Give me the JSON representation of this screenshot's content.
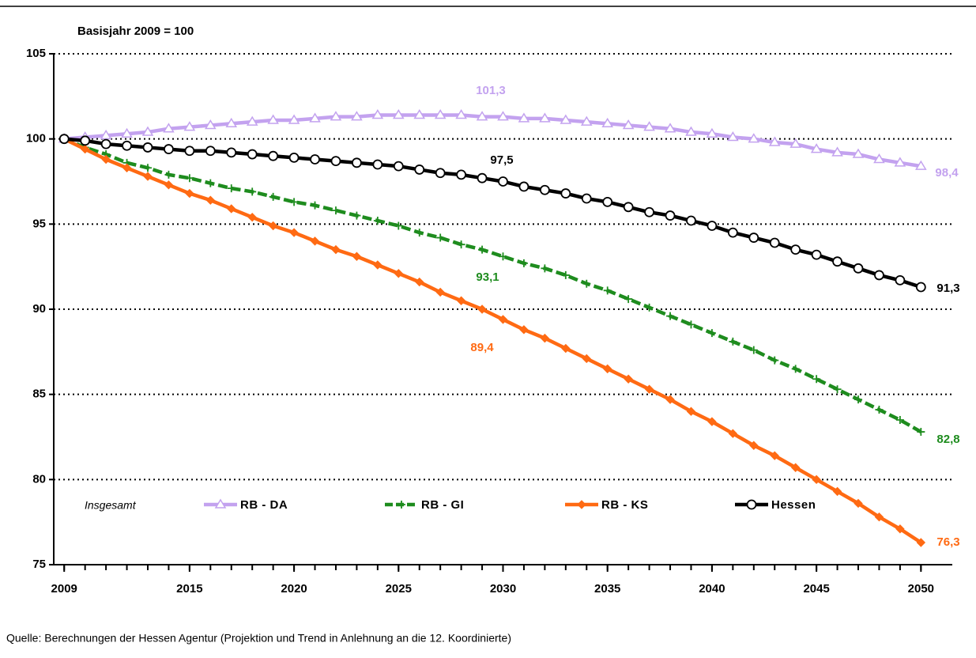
{
  "chart_data": {
    "type": "line",
    "title": "Basisjahr 2009 = 100",
    "legend_title": "Insgesamt",
    "source": "Quelle:  Berechnungen der Hessen Agentur (Projektion und Trend in Anlehnung an die 12. Koordinierte)",
    "x": [
      2009,
      2010,
      2011,
      2012,
      2013,
      2014,
      2015,
      2016,
      2017,
      2018,
      2019,
      2020,
      2021,
      2022,
      2023,
      2024,
      2025,
      2026,
      2027,
      2028,
      2029,
      2030,
      2031,
      2032,
      2033,
      2034,
      2035,
      2036,
      2037,
      2038,
      2039,
      2040,
      2041,
      2042,
      2043,
      2044,
      2045,
      2046,
      2047,
      2048,
      2049,
      2050
    ],
    "xlim": [
      2008.5,
      2051.5
    ],
    "xticks": [
      2009,
      2015,
      2020,
      2025,
      2030,
      2035,
      2040,
      2045,
      2050
    ],
    "ylim": [
      75,
      105
    ],
    "yticks": [
      75,
      80,
      85,
      90,
      95,
      100,
      105
    ],
    "grid": true,
    "legend": "bottom",
    "series": [
      {
        "name": "RB - DA",
        "color": "#c3a2ef",
        "marker": "triangle",
        "values": [
          100.0,
          100.1,
          100.2,
          100.3,
          100.4,
          100.6,
          100.7,
          100.8,
          100.9,
          101.0,
          101.1,
          101.1,
          101.2,
          101.3,
          101.3,
          101.4,
          101.4,
          101.4,
          101.4,
          101.4,
          101.3,
          101.3,
          101.2,
          101.2,
          101.1,
          101.0,
          100.9,
          100.8,
          100.7,
          100.6,
          100.4,
          100.3,
          100.1,
          100.0,
          99.8,
          99.7,
          99.4,
          99.2,
          99.1,
          98.8,
          98.6,
          98.4
        ]
      },
      {
        "name": "RB - GI",
        "color": "#1e8c1e",
        "marker": "plus",
        "dashed": true,
        "values": [
          100,
          99.5,
          99.1,
          98.6,
          98.3,
          97.9,
          97.7,
          97.4,
          97.1,
          96.9,
          96.6,
          96.3,
          96.1,
          95.8,
          95.5,
          95.2,
          94.9,
          94.5,
          94.2,
          93.8,
          93.5,
          93.1,
          92.7,
          92.4,
          92.0,
          91.5,
          91.1,
          90.6,
          90.1,
          89.6,
          89.1,
          88.6,
          88.1,
          87.6,
          87.0,
          86.5,
          85.9,
          85.3,
          84.7,
          84.1,
          83.5,
          82.8
        ]
      },
      {
        "name": "RB - KS",
        "color": "#ff6a13",
        "marker": "diamond",
        "values": [
          100,
          99.4,
          98.8,
          98.3,
          97.8,
          97.3,
          96.8,
          96.4,
          95.9,
          95.4,
          94.9,
          94.5,
          94.0,
          93.5,
          93.1,
          92.6,
          92.1,
          91.6,
          91.0,
          90.5,
          90.0,
          89.4,
          88.8,
          88.3,
          87.7,
          87.1,
          86.5,
          85.9,
          85.3,
          84.7,
          84.0,
          83.4,
          82.7,
          82.0,
          81.4,
          80.7,
          80.0,
          79.3,
          78.6,
          77.8,
          77.1,
          76.3
        ]
      },
      {
        "name": "Hessen",
        "color": "#000000",
        "marker": "circle",
        "values": [
          100,
          99.9,
          99.7,
          99.6,
          99.5,
          99.4,
          99.3,
          99.3,
          99.2,
          99.1,
          99.0,
          98.9,
          98.8,
          98.7,
          98.6,
          98.5,
          98.4,
          98.2,
          98.0,
          97.9,
          97.7,
          97.5,
          97.2,
          97.0,
          96.8,
          96.5,
          96.3,
          96.0,
          95.7,
          95.5,
          95.2,
          94.9,
          94.5,
          94.2,
          93.9,
          93.5,
          93.2,
          92.8,
          92.4,
          92.0,
          91.7,
          91.3
        ]
      }
    ],
    "annotations": [
      "101,3",
      "98,4",
      "97,5",
      "91,3",
      "93,1",
      "82,8",
      "89,4",
      "76,3"
    ]
  }
}
